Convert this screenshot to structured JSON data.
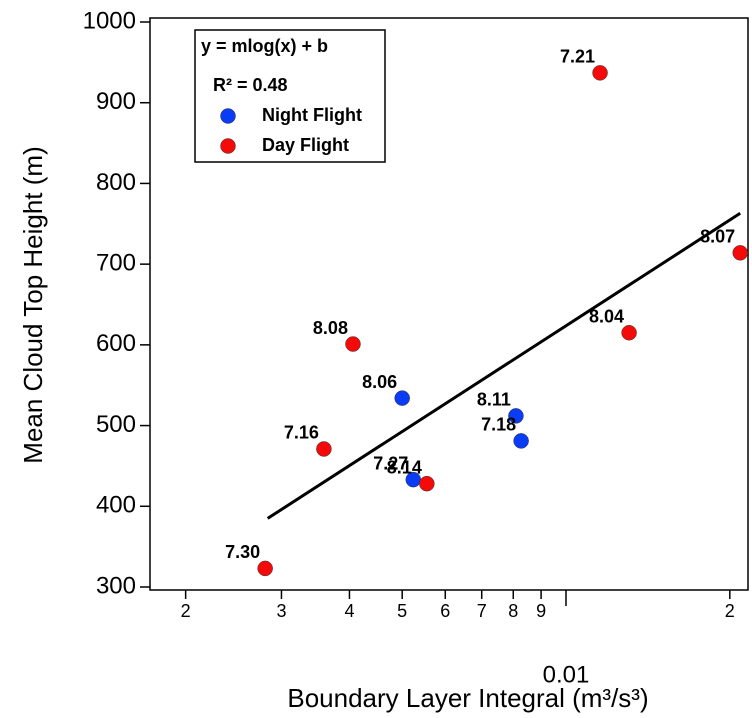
{
  "chart_data": {
    "type": "scatter",
    "xlabel": "Boundary Layer Integral (m³/s³)",
    "ylabel": "Mean Cloud Top Height (m)",
    "xscale": "log",
    "xlim": [
      0.00172,
      0.0216
    ],
    "ylim": [
      300,
      1000
    ],
    "xticks": [
      {
        "value": 0.002,
        "label": "2"
      },
      {
        "value": 0.003,
        "label": "3"
      },
      {
        "value": 0.004,
        "label": "4"
      },
      {
        "value": 0.005,
        "label": "5"
      },
      {
        "value": 0.006,
        "label": "6"
      },
      {
        "value": 0.007,
        "label": "7"
      },
      {
        "value": 0.008,
        "label": "8"
      },
      {
        "value": 0.009,
        "label": "9"
      },
      0.01,
      {
        "value": 0.02,
        "label": "2"
      }
    ],
    "yticks": [
      300,
      400,
      500,
      600,
      700,
      800,
      900,
      1000
    ],
    "legend": {
      "equation": "y = mlog(x) + b",
      "r_squared": "R² = 0.48",
      "position": "upper left"
    },
    "series": [
      {
        "name": "Night Flight",
        "color": "#0a3cf5",
        "x": [
          0.005,
          0.00524,
          0.00809,
          0.00827
        ],
        "values": [
          534,
          433,
          512,
          481
        ],
        "labels": [
          "8.06",
          "7.27",
          "8.11",
          "7.18"
        ]
      },
      {
        "name": "Day Flight",
        "color": "#f50a0a",
        "x": [
          0.0028,
          0.00359,
          0.00406,
          0.00555,
          0.01155,
          0.01306,
          0.0209
        ],
        "values": [
          323,
          471,
          601,
          428,
          937,
          615,
          714
        ],
        "labels": [
          "7.30",
          "7.16",
          "8.08",
          "8.14",
          "7.21",
          "8.04",
          "8.07"
        ]
      }
    ],
    "fit_line": {
      "color": "#000000",
      "x": [
        0.00283,
        0.0209
      ],
      "values": [
        385,
        763
      ]
    }
  }
}
